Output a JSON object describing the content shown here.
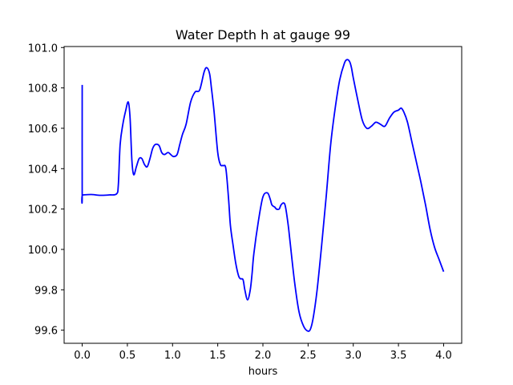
{
  "chart_data": {
    "type": "line",
    "title": "Water Depth h at gauge 99",
    "xlabel": "hours",
    "ylabel": "",
    "xlim": [
      -0.2,
      4.2
    ],
    "ylim": [
      99.535,
      101.005
    ],
    "grid": false,
    "x_ticks": [
      0.0,
      0.5,
      1.0,
      1.5,
      2.0,
      2.5,
      3.0,
      3.5,
      4.0
    ],
    "x_tick_labels": [
      "0.0",
      "0.5",
      "1.0",
      "1.5",
      "2.0",
      "2.5",
      "3.0",
      "3.5",
      "4.0"
    ],
    "y_ticks": [
      99.6,
      99.8,
      100.0,
      100.2,
      100.4,
      100.6,
      100.8,
      101.0
    ],
    "y_tick_labels": [
      "99.6",
      "99.8",
      "100.0",
      "100.2",
      "100.4",
      "100.6",
      "100.8",
      "101.0"
    ],
    "colors": {
      "series": "#0000ff",
      "axes": "#000000",
      "background": "#ffffff"
    },
    "series": [
      {
        "x": [
          0.0,
          0.0,
          0.005,
          0.1,
          0.2,
          0.3,
          0.38,
          0.4,
          0.42,
          0.45,
          0.48,
          0.51,
          0.53,
          0.55,
          0.57,
          0.6,
          0.63,
          0.66,
          0.69,
          0.72,
          0.75,
          0.78,
          0.81,
          0.85,
          0.88,
          0.91,
          0.95,
          0.98,
          1.01,
          1.05,
          1.08,
          1.11,
          1.15,
          1.2,
          1.25,
          1.3,
          1.35,
          1.38,
          1.41,
          1.43,
          1.46,
          1.5,
          1.53,
          1.56,
          1.59,
          1.62,
          1.64,
          1.67,
          1.7,
          1.73,
          1.75,
          1.78,
          1.8,
          1.83,
          1.86,
          1.88,
          1.9,
          1.95,
          2.0,
          2.05,
          2.08,
          2.1,
          2.13,
          2.15,
          2.18,
          2.2,
          2.23,
          2.25,
          2.28,
          2.3,
          2.35,
          2.4,
          2.45,
          2.5,
          2.53,
          2.56,
          2.6,
          2.65,
          2.7,
          2.75,
          2.8,
          2.85,
          2.9,
          2.93,
          2.96,
          2.98,
          3.0,
          3.05,
          3.1,
          3.15,
          3.2,
          3.25,
          3.3,
          3.35,
          3.4,
          3.45,
          3.5,
          3.53,
          3.56,
          3.6,
          3.65,
          3.7,
          3.75,
          3.8,
          3.85,
          3.9,
          3.95,
          4.0
        ],
        "y": [
          100.815,
          100.27,
          100.27,
          100.272,
          100.268,
          100.27,
          100.275,
          100.32,
          100.52,
          100.62,
          100.685,
          100.73,
          100.65,
          100.44,
          100.37,
          100.41,
          100.45,
          100.45,
          100.42,
          100.41,
          100.45,
          100.5,
          100.52,
          100.515,
          100.48,
          100.47,
          100.48,
          100.47,
          100.46,
          100.47,
          100.52,
          100.57,
          100.62,
          100.73,
          100.78,
          100.79,
          100.88,
          100.9,
          100.87,
          100.8,
          100.68,
          100.48,
          100.42,
          100.415,
          100.4,
          100.25,
          100.12,
          100.02,
          99.93,
          99.87,
          99.855,
          99.85,
          99.8,
          99.75,
          99.8,
          99.88,
          99.98,
          100.14,
          100.26,
          100.28,
          100.25,
          100.22,
          100.21,
          100.2,
          100.2,
          100.22,
          100.23,
          100.21,
          100.12,
          100.04,
          99.84,
          99.69,
          99.62,
          99.595,
          99.61,
          99.67,
          99.8,
          100.02,
          100.26,
          100.52,
          100.7,
          100.84,
          100.92,
          100.94,
          100.93,
          100.9,
          100.85,
          100.74,
          100.64,
          100.6,
          100.61,
          100.63,
          100.62,
          100.61,
          100.65,
          100.68,
          100.69,
          100.7,
          100.68,
          100.63,
          100.53,
          100.43,
          100.33,
          100.22,
          100.1,
          100.01,
          99.95,
          99.89
        ]
      }
    ]
  }
}
